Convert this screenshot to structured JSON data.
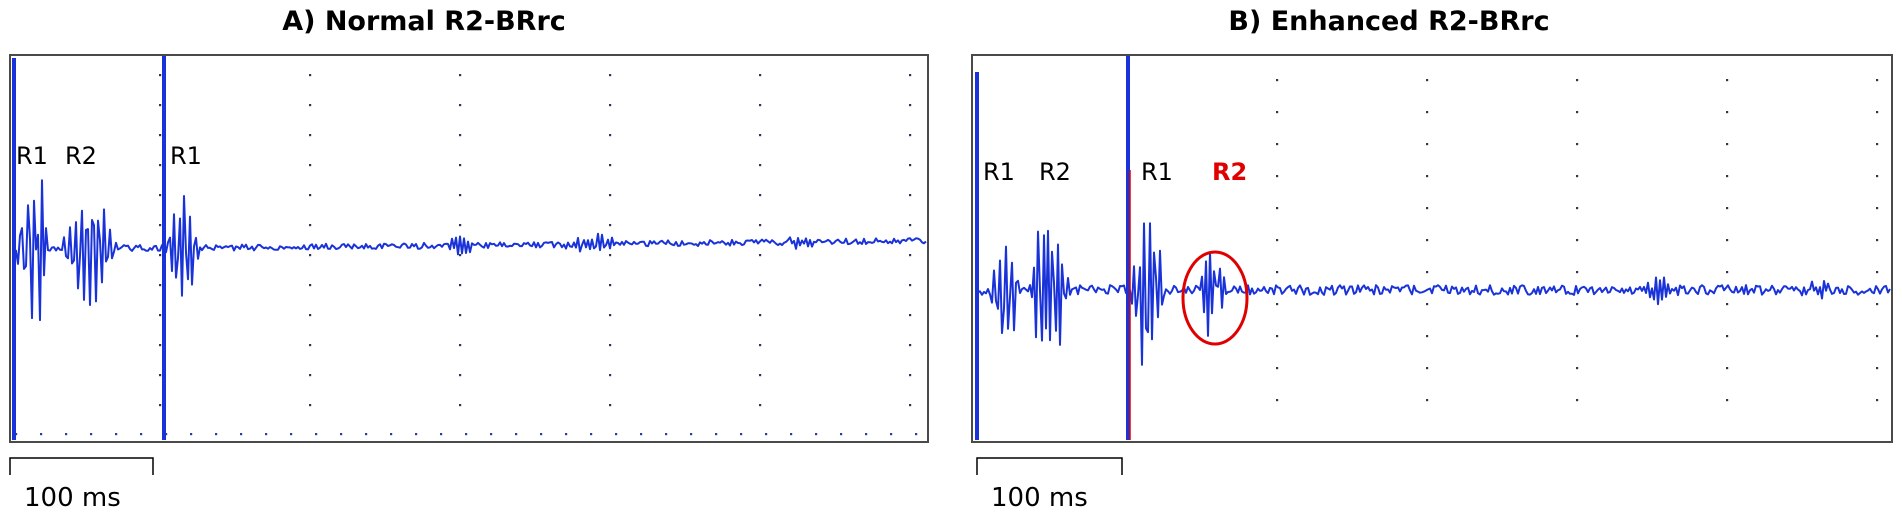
{
  "chart_data": [
    {
      "type": "line",
      "title": "A) Normal R2-BRrc",
      "annotations": [
        "R1",
        "R2",
        "R1"
      ],
      "scale_bar_label": "100 ms",
      "colors": {
        "trace": "#1a33d9",
        "frame": "#4a4a4a",
        "grid": "#333355"
      },
      "grid": true
    },
    {
      "type": "line",
      "title": "B) Enhanced R2-BRrc",
      "annotations": [
        "R1",
        "R2",
        "R1"
      ],
      "highlight_label": "R2",
      "scale_bar_label": "100 ms",
      "colors": {
        "trace": "#1a33d9",
        "frame": "#4a4a4a",
        "grid": "#333355",
        "highlight": "#e00000"
      },
      "grid": true
    }
  ]
}
